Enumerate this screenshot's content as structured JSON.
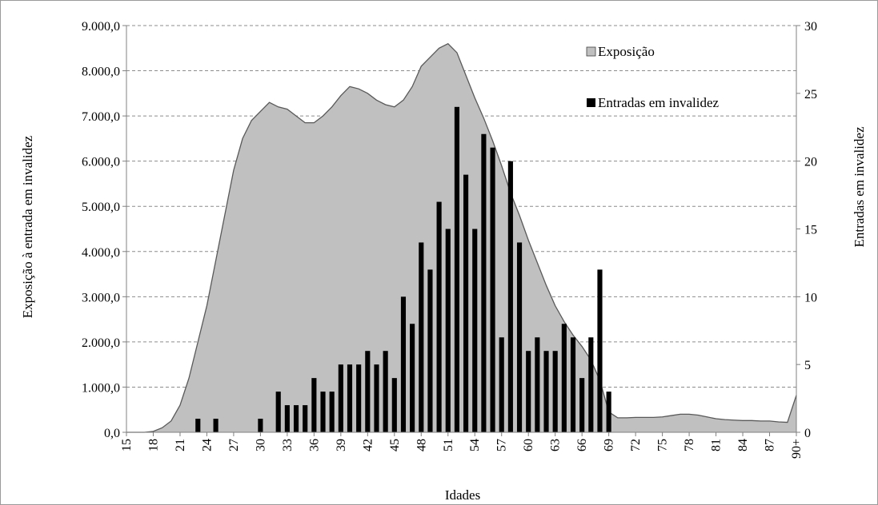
{
  "chart_data": {
    "type": "bar",
    "title": "",
    "xlabel": "Idades",
    "ylabel_left": "Exposição à entrada em invalidez",
    "ylabel_right": "Entradas em invalidez",
    "ylim_left": [
      0,
      9000
    ],
    "ylim_right": [
      0,
      30
    ],
    "left_ticks": [
      "0,0",
      "1.000,0",
      "2.000,0",
      "3.000,0",
      "4.000,0",
      "5.000,0",
      "6.000,0",
      "7.000,0",
      "8.000,0",
      "9.000,0"
    ],
    "right_ticks": [
      "0",
      "5",
      "10",
      "15",
      "20",
      "25",
      "30"
    ],
    "x_tick_labels": [
      "15",
      "18",
      "21",
      "24",
      "27",
      "30",
      "33",
      "36",
      "39",
      "42",
      "45",
      "48",
      "51",
      "54",
      "57",
      "60",
      "63",
      "66",
      "69",
      "72",
      "75",
      "78",
      "81",
      "84",
      "87",
      "90+"
    ],
    "grid": true,
    "legend_position": "top-right",
    "x": [
      "15",
      "16",
      "17",
      "18",
      "19",
      "20",
      "21",
      "22",
      "23",
      "24",
      "25",
      "26",
      "27",
      "28",
      "29",
      "30",
      "31",
      "32",
      "33",
      "34",
      "35",
      "36",
      "37",
      "38",
      "39",
      "40",
      "41",
      "42",
      "43",
      "44",
      "45",
      "46",
      "47",
      "48",
      "49",
      "50",
      "51",
      "52",
      "53",
      "54",
      "55",
      "56",
      "57",
      "58",
      "59",
      "60",
      "61",
      "62",
      "63",
      "64",
      "65",
      "66",
      "67",
      "68",
      "69",
      "70",
      "71",
      "72",
      "73",
      "74",
      "75",
      "76",
      "77",
      "78",
      "79",
      "80",
      "81",
      "82",
      "83",
      "84",
      "85",
      "86",
      "87",
      "88",
      "89",
      "90+"
    ],
    "series": [
      {
        "name": "Exposição",
        "type": "area",
        "axis": "left",
        "color": "#c0c0c0",
        "values": [
          0,
          0,
          0,
          20,
          100,
          250,
          600,
          1200,
          2000,
          2800,
          3800,
          4800,
          5800,
          6500,
          6900,
          7100,
          7300,
          7200,
          7150,
          7000,
          6850,
          6850,
          7000,
          7200,
          7450,
          7650,
          7600,
          7500,
          7350,
          7250,
          7200,
          7350,
          7650,
          8100,
          8300,
          8500,
          8600,
          8400,
          7900,
          7400,
          6950,
          6450,
          5900,
          5300,
          4800,
          4250,
          3750,
          3250,
          2800,
          2450,
          2150,
          1900,
          1600,
          1150,
          450,
          320,
          320,
          330,
          330,
          330,
          340,
          370,
          400,
          400,
          380,
          340,
          300,
          280,
          270,
          260,
          260,
          250,
          250,
          230,
          220,
          820
        ]
      },
      {
        "name": "Entradas em invalidez",
        "type": "bar",
        "axis": "right",
        "color": "#000000",
        "values": [
          0,
          0,
          0,
          0,
          0,
          0,
          0,
          0,
          1,
          0,
          1,
          0,
          0,
          0,
          0,
          1,
          0,
          3,
          2,
          2,
          2,
          4,
          3,
          3,
          5,
          5,
          5,
          6,
          5,
          6,
          4,
          10,
          8,
          14,
          12,
          17,
          15,
          24,
          19,
          15,
          22,
          21,
          7,
          20,
          14,
          6,
          7,
          6,
          6,
          8,
          7,
          4,
          7,
          12,
          3,
          0,
          0,
          0,
          0,
          0,
          0,
          0,
          0,
          0,
          0,
          0,
          0,
          0,
          0,
          0,
          0,
          0,
          0,
          0,
          0,
          0
        ]
      }
    ]
  }
}
